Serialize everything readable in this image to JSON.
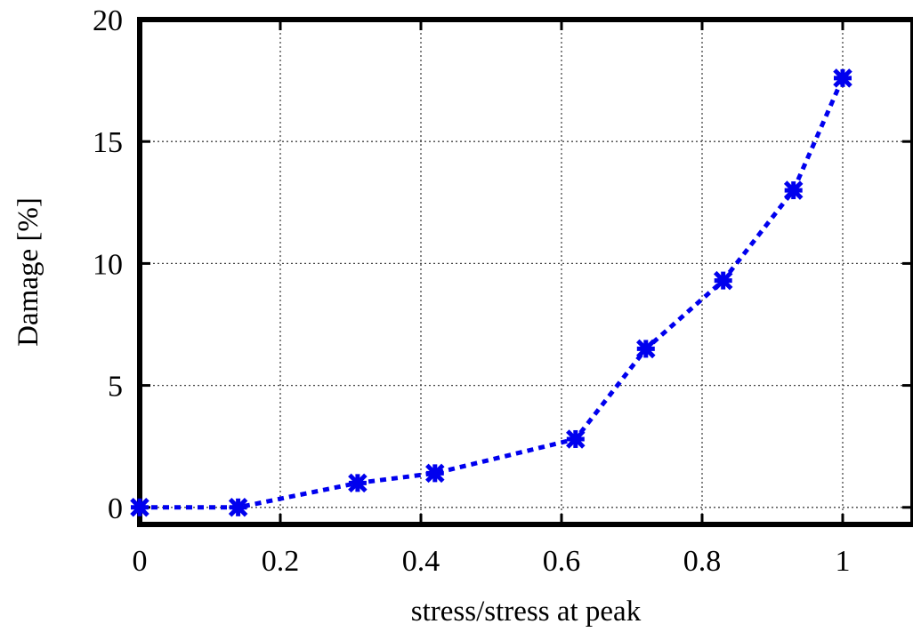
{
  "chart_data": {
    "type": "line",
    "title": "",
    "xlabel": "stress/stress at peak",
    "ylabel": "Damage [%]",
    "xlim": [
      0,
      1.1
    ],
    "ylim": [
      -0.7,
      20
    ],
    "xticks": [
      0,
      0.2,
      0.4,
      0.6,
      0.8,
      1
    ],
    "xtick_labels": [
      "0",
      "0.2",
      "0.4",
      "0.6",
      "0.8",
      "1"
    ],
    "yticks": [
      0,
      5,
      10,
      15,
      20
    ],
    "ytick_labels": [
      "0",
      "5",
      "10",
      "15",
      "20"
    ],
    "grid": true,
    "legend": null,
    "series": [
      {
        "color": "#0000ee",
        "line_style": "dotted",
        "marker": "asterisk",
        "x": [
          0.0,
          0.14,
          0.31,
          0.42,
          0.62,
          0.72,
          0.83,
          0.93,
          1.0
        ],
        "y": [
          0.0,
          0.0,
          1.0,
          1.4,
          2.8,
          6.5,
          9.3,
          13.0,
          17.6
        ]
      }
    ]
  }
}
